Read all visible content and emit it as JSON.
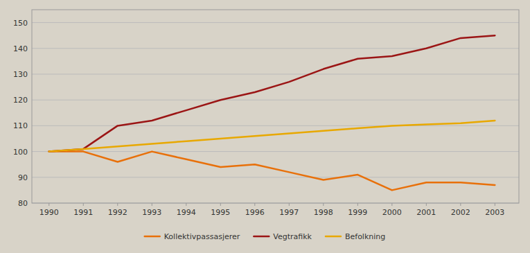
{
  "chart_data": {
    "type": "line",
    "x": [
      1990,
      1991,
      1992,
      1993,
      1994,
      1995,
      1996,
      1997,
      1998,
      1999,
      2000,
      2001,
      2002,
      2003
    ],
    "series": [
      {
        "name": "Kollektivpassasjerer",
        "color": "#E8700A",
        "values": [
          100,
          100,
          96,
          100,
          97,
          94,
          95,
          92,
          89,
          91,
          85,
          88,
          88,
          87
        ]
      },
      {
        "name": "Vegtrafikk",
        "color": "#9B1515",
        "values": [
          100,
          101,
          110,
          112,
          116,
          120,
          123,
          127,
          132,
          136,
          137,
          140,
          144,
          145
        ]
      },
      {
        "name": "Befolkning",
        "color": "#E8A800",
        "values": [
          100,
          101,
          102,
          103,
          104,
          105,
          106,
          107,
          108,
          109,
          110,
          110.5,
          111,
          112
        ]
      }
    ],
    "xlim": [
      1989.5,
      2003.7
    ],
    "xticks": [
      1990,
      1991,
      1992,
      1993,
      1994,
      1995,
      1996,
      1997,
      1998,
      1999,
      2000,
      2001,
      2002,
      2003
    ],
    "ylim": [
      80,
      155
    ],
    "yticks": [
      80,
      90,
      100,
      110,
      120,
      130,
      140,
      150
    ],
    "grid": true,
    "legend": "bottom"
  }
}
